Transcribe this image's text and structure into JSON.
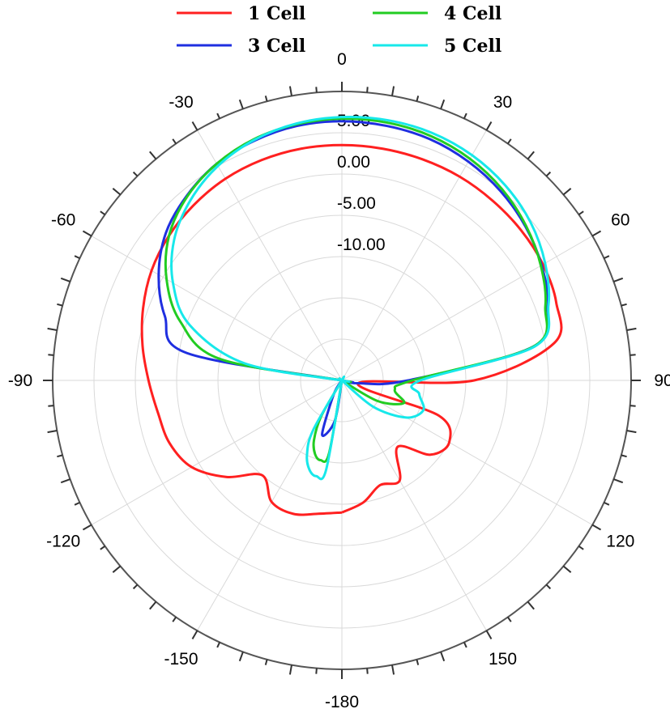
{
  "chart_data": {
    "type": "polar",
    "radial_axis": {
      "min": -25,
      "max": 10,
      "rings": [
        -20,
        -15,
        -10,
        -5,
        0,
        5,
        10
      ],
      "tick_labels": [
        "-10.00",
        "-5.00",
        "0.00",
        "5.00"
      ]
    },
    "angular_axis": {
      "labels": [
        "0",
        "30",
        "60",
        "90",
        "120",
        "150",
        "-180",
        "-150",
        "-120",
        "-90",
        "-60",
        "-30"
      ],
      "angles": [
        0,
        30,
        60,
        90,
        120,
        150,
        180,
        -150,
        -120,
        -90,
        -60,
        -30
      ]
    },
    "grid": true,
    "legend_position": "top",
    "series": [
      {
        "name": "1 Cell",
        "color": "#ff2020",
        "theta": [
          -180,
          -170,
          -160,
          -150,
          -140,
          -130,
          -120,
          -110,
          -100,
          -90,
          -80,
          -70,
          -60,
          -50,
          -40,
          -30,
          -20,
          -10,
          0,
          10,
          20,
          30,
          40,
          50,
          60,
          70,
          80,
          90,
          100,
          110,
          120,
          130,
          140,
          150,
          160,
          170,
          180
        ],
        "r": [
          -9,
          -8.6,
          -7.8,
          -8,
          -10,
          -6.8,
          -4,
          -2.8,
          -2.4,
          -1.6,
          -0.5,
          0.6,
          1.6,
          2.3,
          2.8,
          3.2,
          3.4,
          3.5,
          3.5,
          3.5,
          3.5,
          3.5,
          3.4,
          3.3,
          3.1,
          2.6,
          1.1,
          -9,
          -23,
          -12.5,
          -10,
          -11,
          -14.5,
          -11,
          -11.5,
          -10,
          -9
        ]
      },
      {
        "name": "3 Cell",
        "color": "#1f2fe0",
        "theta": [
          -180,
          -170,
          -160,
          -150,
          -140,
          -130,
          -120,
          -110,
          -100,
          -90,
          -80,
          -70,
          -60,
          -50,
          -40,
          -30,
          -20,
          -10,
          0,
          10,
          20,
          30,
          40,
          50,
          60,
          70,
          80,
          90,
          100,
          110,
          120,
          130,
          140,
          150,
          160,
          180
        ],
        "r": [
          -25,
          -20,
          -18,
          -23,
          -25,
          -25,
          -25,
          -25,
          -25,
          -25,
          -6,
          -2.2,
          0.6,
          2.8,
          4.2,
          5.3,
          5.9,
          6.3,
          6.4,
          6.3,
          6.1,
          5.6,
          4.9,
          4,
          2.9,
          1.5,
          -1.5,
          -17,
          -23,
          -25,
          -25,
          -25,
          -25,
          -25,
          -25,
          -25
        ]
      },
      {
        "name": "4 Cell",
        "color": "#22cc22",
        "theta": [
          -180,
          -170,
          -165,
          -160,
          -155,
          -150,
          -140,
          -130,
          -120,
          -110,
          -100,
          -90,
          -80,
          -70,
          -60,
          -50,
          -40,
          -30,
          -20,
          -10,
          0,
          10,
          20,
          30,
          40,
          50,
          60,
          70,
          80,
          90,
          100,
          110,
          120,
          130,
          140,
          150,
          160,
          170,
          180
        ],
        "r": [
          -25,
          -16,
          -15,
          -15.5,
          -17,
          -20,
          -25,
          -25,
          -25,
          -25,
          -25,
          -25,
          -10,
          -4.2,
          -0.5,
          2.3,
          4.1,
          5.3,
          6.1,
          6.5,
          6.7,
          6.7,
          6.5,
          6,
          5.2,
          4.1,
          2.8,
          1.2,
          -1.5,
          -16.5,
          -18.5,
          -17,
          -20,
          -25,
          -25,
          -25,
          -25,
          -25,
          -25
        ]
      },
      {
        "name": "5 Cell",
        "color": "#17e8ea",
        "theta": [
          -180,
          -170,
          -165,
          -160,
          -155,
          -150,
          -140,
          -130,
          -120,
          -110,
          -100,
          -90,
          -80,
          -70,
          -60,
          -50,
          -40,
          -30,
          -20,
          -10,
          0,
          10,
          20,
          30,
          40,
          50,
          60,
          70,
          80,
          90,
          100,
          110,
          120,
          130,
          140,
          150,
          160,
          170,
          180
        ],
        "r": [
          -25,
          -14,
          -13,
          -13.5,
          -15,
          -18,
          -25,
          -25,
          -25,
          -25,
          -25,
          -25,
          -13,
          -5.4,
          -1.4,
          1.5,
          3.5,
          5,
          6,
          6.6,
          6.9,
          7,
          6.9,
          6.5,
          5.8,
          4.8,
          3.4,
          1.6,
          -1.3,
          -15.5,
          -15.5,
          -14.5,
          -16,
          -20,
          -25,
          -25,
          -25,
          -25,
          -25
        ]
      }
    ]
  }
}
